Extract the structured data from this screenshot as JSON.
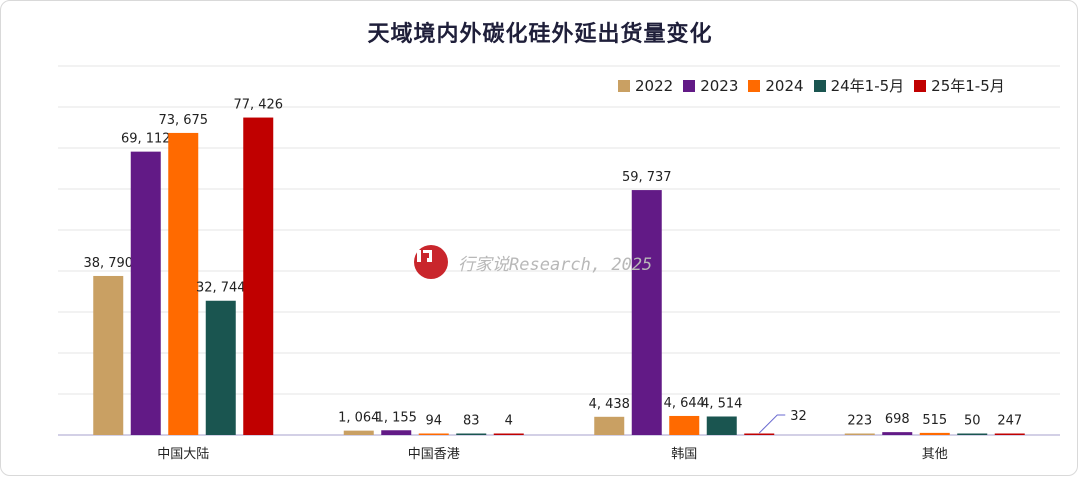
{
  "chart_data": {
    "type": "bar",
    "title": "天域境内外碳化硅外延出货量变化",
    "categories": [
      "中国大陆",
      "中国香港",
      "韩国",
      "其他"
    ],
    "series": [
      {
        "name": "2022",
        "color": "#c9a063",
        "values": [
          38790,
          1064,
          4438,
          223
        ],
        "labels": [
          "38, 790",
          "1, 064",
          "4, 438",
          "223"
        ]
      },
      {
        "name": "2023",
        "color": "#621a86",
        "values": [
          69112,
          1155,
          59737,
          698
        ],
        "labels": [
          "69, 112",
          "1, 155",
          "59, 737",
          "698"
        ]
      },
      {
        "name": "2024",
        "color": "#ff6a00",
        "values": [
          73675,
          94,
          4644,
          515
        ],
        "labels": [
          "73, 675",
          "94",
          "4, 644",
          "515"
        ]
      },
      {
        "name": "24年1-5月",
        "color": "#1a5550",
        "values": [
          32744,
          83,
          4514,
          50
        ],
        "labels": [
          "32, 744",
          "83",
          "4, 514",
          "50"
        ]
      },
      {
        "name": "25年1-5月",
        "color": "#c00000",
        "values": [
          77426,
          4,
          32,
          247
        ],
        "labels": [
          "77, 426",
          "4",
          "32",
          "247"
        ]
      }
    ],
    "ylim": [
      0,
      90000
    ],
    "grid": true,
    "legend_position": "top-right"
  },
  "watermark": {
    "logo_text": "i?",
    "text": "行家说Research, 2025"
  }
}
